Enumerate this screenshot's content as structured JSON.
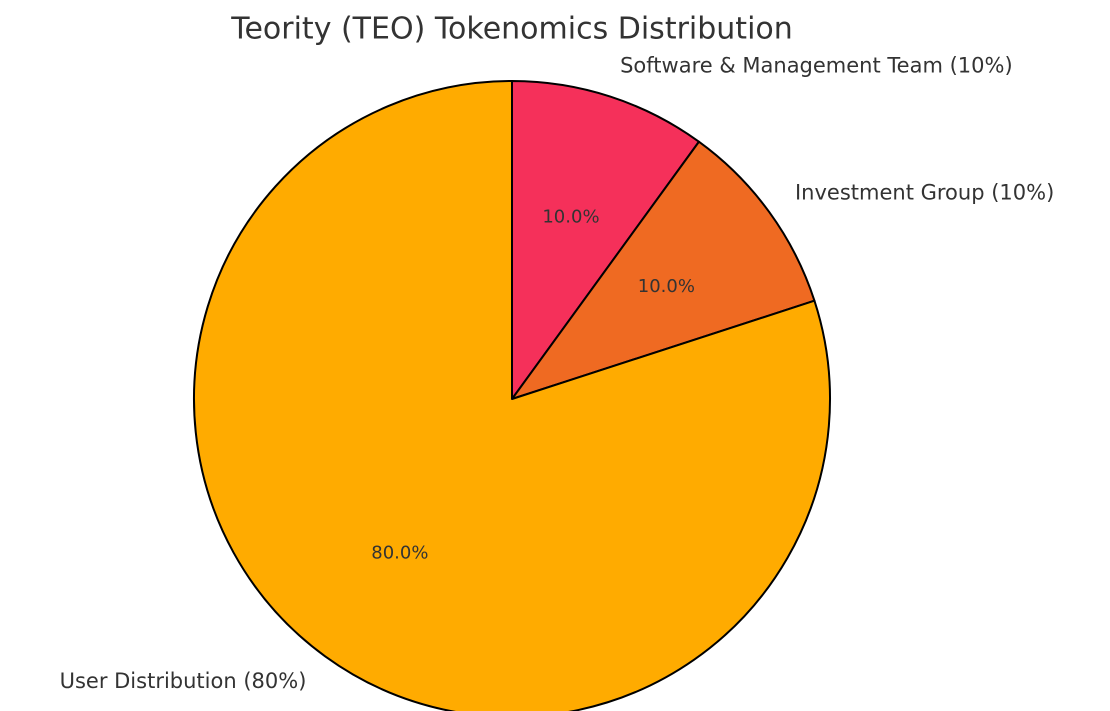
{
  "chart_data": {
    "type": "pie",
    "title": "Teority (TEO) Tokenomics Distribution",
    "categories": [
      "Software & Management Team (10%)",
      "Investment Group (10%)",
      "User Distribution (80%)"
    ],
    "values": [
      10,
      10,
      80
    ],
    "value_labels": [
      "10.0%",
      "10.0%",
      "80.0%"
    ],
    "colors": [
      "#f5305a",
      "#ef6a22",
      "#ffab00"
    ],
    "start_angle": 90,
    "clockwise": true
  }
}
